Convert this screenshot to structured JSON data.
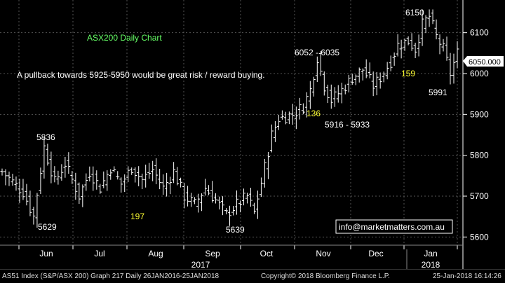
{
  "chart_data": {
    "type": "ohlc",
    "title": "ASX200 Daily Chart",
    "subtitle": "A pullback towards 5925-5950 would be great risk / reward buying.",
    "ylim": [
      5580,
      6180
    ],
    "yticks": [
      5600,
      5700,
      5800,
      5900,
      6000,
      6100
    ],
    "last_price_label": "6050.000",
    "month_labels": [
      "Jun",
      "Jul",
      "Aug",
      "Sep",
      "Oct",
      "Nov",
      "Dec",
      "Jan"
    ],
    "year_labels": [
      "2017",
      "2018"
    ],
    "grid": true,
    "annotations": [
      {
        "text": "5836",
        "color": "#ffffff"
      },
      {
        "text": "5629",
        "color": "#ffffff"
      },
      {
        "text": "197",
        "color": "#ffff33"
      },
      {
        "text": "5639",
        "color": "#ffffff"
      },
      {
        "text": "6052 - 6035",
        "color": "#ffffff"
      },
      {
        "text": "136",
        "color": "#ffff33"
      },
      {
        "text": "5916 - 5933",
        "color": "#ffffff"
      },
      {
        "text": "6150",
        "color": "#ffffff"
      },
      {
        "text": "159",
        "color": "#ffff33"
      },
      {
        "text": "5991",
        "color": "#ffffff"
      }
    ],
    "watermark": "info@marketmatters.com.au",
    "anchors": [
      {
        "i": 0,
        "v": 5760
      },
      {
        "i": 6,
        "v": 5710
      },
      {
        "i": 9,
        "v": 5650
      },
      {
        "i": 12,
        "v": 5820
      },
      {
        "i": 15,
        "v": 5735
      },
      {
        "i": 18,
        "v": 5780
      },
      {
        "i": 22,
        "v": 5700
      },
      {
        "i": 25,
        "v": 5760
      },
      {
        "i": 28,
        "v": 5720
      },
      {
        "i": 31,
        "v": 5770
      },
      {
        "i": 34,
        "v": 5730
      },
      {
        "i": 37,
        "v": 5770
      },
      {
        "i": 40,
        "v": 5740
      },
      {
        "i": 43,
        "v": 5765
      },
      {
        "i": 46,
        "v": 5720
      },
      {
        "i": 49,
        "v": 5760
      },
      {
        "i": 52,
        "v": 5700
      },
      {
        "i": 55,
        "v": 5680
      },
      {
        "i": 58,
        "v": 5720
      },
      {
        "i": 61,
        "v": 5690
      },
      {
        "i": 64,
        "v": 5655
      },
      {
        "i": 67,
        "v": 5680
      },
      {
        "i": 70,
        "v": 5700
      },
      {
        "i": 72,
        "v": 5660
      },
      {
        "i": 75,
        "v": 5770
      },
      {
        "i": 77,
        "v": 5850
      },
      {
        "i": 79,
        "v": 5890
      },
      {
        "i": 83,
        "v": 5900
      },
      {
        "i": 86,
        "v": 5920
      },
      {
        "i": 88,
        "v": 5960
      },
      {
        "i": 90,
        "v": 6040
      },
      {
        "i": 92,
        "v": 5970
      },
      {
        "i": 94,
        "v": 5935
      },
      {
        "i": 97,
        "v": 5960
      },
      {
        "i": 100,
        "v": 5990
      },
      {
        "i": 103,
        "v": 6010
      },
      {
        "i": 106,
        "v": 5970
      },
      {
        "i": 108,
        "v": 5990
      },
      {
        "i": 111,
        "v": 6030
      },
      {
        "i": 113,
        "v": 6070
      },
      {
        "i": 116,
        "v": 6080
      },
      {
        "i": 118,
        "v": 6060
      },
      {
        "i": 120,
        "v": 6120
      },
      {
        "i": 122,
        "v": 6140
      },
      {
        "i": 124,
        "v": 6090
      },
      {
        "i": 126,
        "v": 6060
      },
      {
        "i": 128,
        "v": 6000
      },
      {
        "i": 130,
        "v": 6050
      }
    ]
  },
  "footer": {
    "left": "AS51 Index (S&P/ASX 200) Graph 217  Daily 26JAN2016-25JAN2018",
    "mid": "Copyright© 2018 Bloomberg Finance L.P.",
    "right": "25-Jan-2018 16:14:26"
  }
}
